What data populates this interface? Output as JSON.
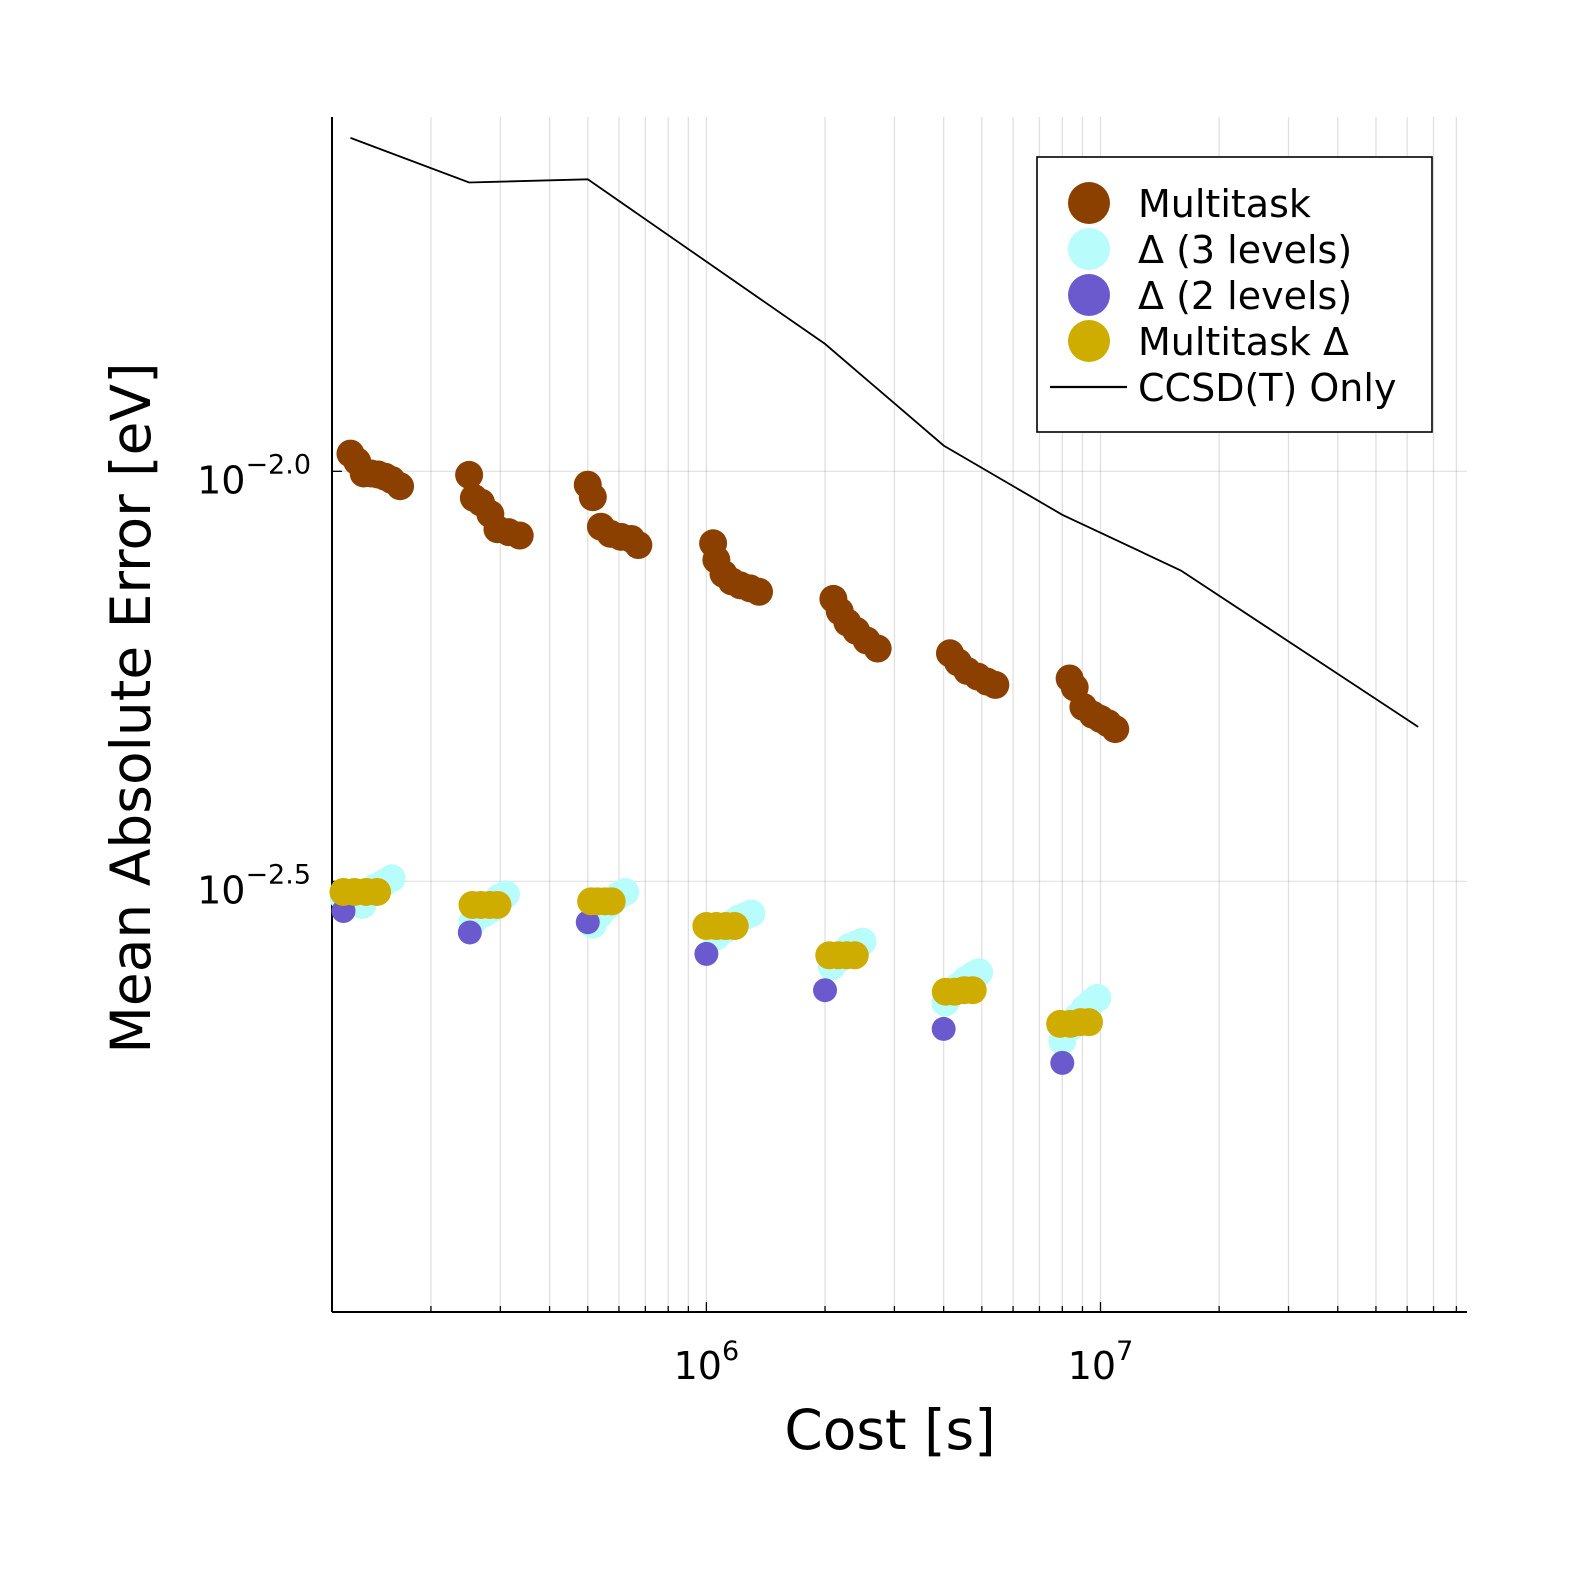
{
  "chart_data": {
    "type": "scatter",
    "title": "",
    "xlabel": "Cost [s]",
    "ylabel": "Mean Absolute Error [eV]",
    "xscale": "log",
    "yscale": "log",
    "xlim_log10": [
      5.05,
      7.93
    ],
    "ylim_log10": [
      -3.025,
      -1.568
    ],
    "x_ticks": [
      {
        "log10": 6,
        "base": "10",
        "exp": "6"
      },
      {
        "log10": 7,
        "base": "10",
        "exp": "7"
      }
    ],
    "y_ticks": [
      {
        "log10": -2.0,
        "base": "10",
        "exp": "−2.0"
      },
      {
        "log10": -2.5,
        "base": "10",
        "exp": "−2.5"
      }
    ],
    "grid": true,
    "legend_position": "top-right",
    "series": [
      {
        "name": "Multitask",
        "kind": "scatter",
        "color": "#8b4000",
        "marker": "large",
        "points": [
          [
            125000,
            0.01051
          ],
          [
            130000,
            0.01028
          ],
          [
            135000,
            0.00994
          ],
          [
            141000,
            0.00994
          ],
          [
            147000,
            0.00991
          ],
          [
            153000,
            0.00985
          ],
          [
            159000,
            0.00976
          ],
          [
            167000,
            0.00959
          ],
          [
            250000,
            0.0099
          ],
          [
            257000,
            0.00928
          ],
          [
            268000,
            0.00916
          ],
          [
            283000,
            0.00887
          ],
          [
            295000,
            0.0085
          ],
          [
            315000,
            0.00843
          ],
          [
            336000,
            0.00835
          ],
          [
            500000,
            0.00963
          ],
          [
            515000,
            0.0093
          ],
          [
            540000,
            0.00856
          ],
          [
            571000,
            0.00839
          ],
          [
            607000,
            0.00832
          ],
          [
            645000,
            0.00827
          ],
          [
            672000,
            0.00813
          ],
          [
            1040000,
            0.00817
          ],
          [
            1060000,
            0.0078
          ],
          [
            1105000,
            0.0075
          ],
          [
            1160000,
            0.00734
          ],
          [
            1220000,
            0.00726
          ],
          [
            1290000,
            0.0072
          ],
          [
            1360000,
            0.00713
          ],
          [
            2100000,
            0.00699
          ],
          [
            2180000,
            0.00675
          ],
          [
            2280000,
            0.00654
          ],
          [
            2400000,
            0.00639
          ],
          [
            2550000,
            0.00622
          ],
          [
            2720000,
            0.00608
          ],
          [
            4150000,
            0.006
          ],
          [
            4350000,
            0.00585
          ],
          [
            4590000,
            0.00571
          ],
          [
            4880000,
            0.00562
          ],
          [
            5160000,
            0.00554
          ],
          [
            5410000,
            0.00549
          ],
          [
            8350000,
            0.00559
          ],
          [
            8600000,
            0.00545
          ],
          [
            9050000,
            0.00516
          ],
          [
            9550000,
            0.00505
          ],
          [
            10000000,
            0.00499
          ],
          [
            10450000,
            0.00493
          ],
          [
            10900000,
            0.00485
          ]
        ]
      },
      {
        "name": "Δ (3 levels)",
        "kind": "scatter",
        "color": "#b8fcfb",
        "marker": "large",
        "points": [
          [
            120000,
            0.00302
          ],
          [
            127000,
            0.00299
          ],
          [
            134000,
            0.00296
          ],
          [
            145000,
            0.00311
          ],
          [
            152000,
            0.00315
          ],
          [
            159000,
            0.00319
          ],
          [
            255000,
            0.00282
          ],
          [
            263000,
            0.00287
          ],
          [
            273000,
            0.00289
          ],
          [
            286000,
            0.00293
          ],
          [
            298000,
            0.00302
          ],
          [
            310000,
            0.00305
          ],
          [
            515000,
            0.0028
          ],
          [
            535000,
            0.00288
          ],
          [
            560000,
            0.00295
          ],
          [
            582000,
            0.003
          ],
          [
            600000,
            0.00304
          ],
          [
            622000,
            0.00307
          ],
          [
            1060000,
            0.00271
          ],
          [
            1110000,
            0.00276
          ],
          [
            1160000,
            0.00281
          ],
          [
            1210000,
            0.00285
          ],
          [
            1255000,
            0.00287
          ],
          [
            1300000,
            0.00289
          ],
          [
            2080000,
            0.00249
          ],
          [
            2160000,
            0.00254
          ],
          [
            2240000,
            0.00259
          ],
          [
            2310000,
            0.00263
          ],
          [
            2400000,
            0.00265
          ],
          [
            2490000,
            0.00267
          ],
          [
            4040000,
            0.00225
          ],
          [
            4200000,
            0.00231
          ],
          [
            4380000,
            0.00236
          ],
          [
            4560000,
            0.0024
          ],
          [
            4750000,
            0.00243
          ],
          [
            4920000,
            0.00245
          ],
          [
            8000000,
            0.00202
          ],
          [
            8380000,
            0.0021
          ],
          [
            8730000,
            0.00216
          ],
          [
            9100000,
            0.00221
          ],
          [
            9480000,
            0.00225
          ],
          [
            9820000,
            0.00228
          ]
        ]
      },
      {
        "name": "Δ (2 levels)",
        "kind": "scatter",
        "color": "#6a5acd",
        "marker": "small",
        "points": [
          [
            120000,
            0.00291
          ],
          [
            251000,
            0.00274
          ],
          [
            500000,
            0.00282
          ],
          [
            1000000,
            0.00258
          ],
          [
            2000000,
            0.00233
          ],
          [
            4000000,
            0.00209
          ],
          [
            8000000,
            0.0019
          ]
        ]
      },
      {
        "name": "Multitask Δ",
        "kind": "scatter",
        "color": "#cfac00",
        "marker": "large",
        "points": [
          [
            120000,
            0.00307
          ],
          [
            128000,
            0.00307
          ],
          [
            137000,
            0.00307
          ],
          [
            146000,
            0.00307
          ],
          [
            255000,
            0.00296
          ],
          [
            268000,
            0.00296
          ],
          [
            282000,
            0.00296
          ],
          [
            295000,
            0.00296
          ],
          [
            510000,
            0.00299
          ],
          [
            530000,
            0.00299
          ],
          [
            553000,
            0.00299
          ],
          [
            575000,
            0.00299
          ],
          [
            1000000,
            0.00279
          ],
          [
            1060000,
            0.00279
          ],
          [
            1120000,
            0.00279
          ],
          [
            1180000,
            0.00279
          ],
          [
            2050000,
            0.00257
          ],
          [
            2160000,
            0.00257
          ],
          [
            2270000,
            0.00257
          ],
          [
            2380000,
            0.00257
          ],
          [
            4050000,
            0.00232
          ],
          [
            4270000,
            0.00232
          ],
          [
            4510000,
            0.00233
          ],
          [
            4740000,
            0.00233
          ],
          [
            7900000,
            0.00212
          ],
          [
            8390000,
            0.00212
          ],
          [
            8900000,
            0.00213
          ],
          [
            9350000,
            0.00213
          ]
        ]
      },
      {
        "name": "CCSD(T) Only",
        "kind": "line",
        "color": "#000000",
        "points": [
          [
            125000,
            0.0255
          ],
          [
            250000,
            0.0225
          ],
          [
            500000,
            0.0227
          ],
          [
            2000000,
            0.0143
          ],
          [
            4000000,
            0.01075
          ],
          [
            8000000,
            0.00885
          ],
          [
            16000000,
            0.00757
          ],
          [
            64000000,
            0.00488
          ]
        ]
      }
    ]
  }
}
